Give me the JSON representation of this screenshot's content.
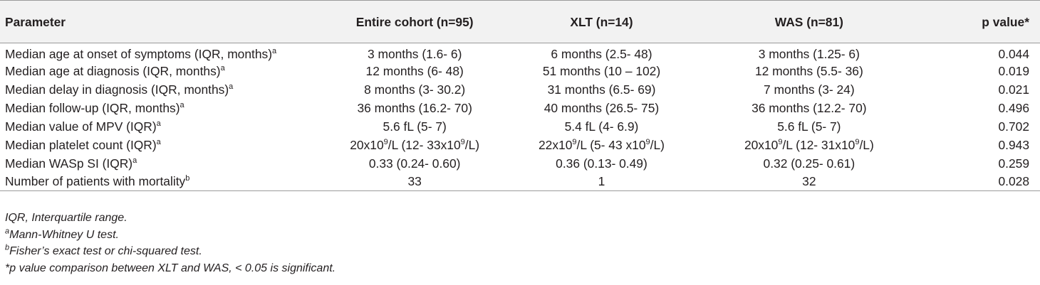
{
  "table": {
    "headers": [
      "Parameter",
      "Entire cohort (n=95)",
      "XLT (n=14)",
      "WAS (n=81)",
      "p value*"
    ],
    "rows": [
      {
        "parameter": "Median age at onset of symptoms (IQR, months)",
        "mark": "a",
        "cells": [
          {
            "pre": "3 months (1.6- 6)"
          },
          {
            "pre": "6 months (2.5- 48)"
          },
          {
            "pre": "3 months (1.25- 6)"
          }
        ],
        "p": "0.044"
      },
      {
        "parameter": "Median age at diagnosis (IQR, months)",
        "mark": "a",
        "cells": [
          {
            "pre": "12 months (6- 48)"
          },
          {
            "pre": "51 months (10 – 102)"
          },
          {
            "pre": "12 months (5.5- 36)"
          }
        ],
        "p": "0.019"
      },
      {
        "parameter": "Median delay in diagnosis (IQR, months)",
        "mark": "a",
        "cells": [
          {
            "pre": "8 months (3- 30.2)"
          },
          {
            "pre": "31 months (6.5- 69)"
          },
          {
            "pre": "7 months (3- 24)"
          }
        ],
        "p": "0.021"
      },
      {
        "parameter": "Median follow-up (IQR, months)",
        "mark": "a",
        "cells": [
          {
            "pre": "36 months (16.2- 70)"
          },
          {
            "pre": "40 months (26.5- 75)"
          },
          {
            "pre": "36 months (12.2- 70)"
          }
        ],
        "p": "0.496"
      },
      {
        "parameter": "Median value of MPV (IQR)",
        "mark": "a",
        "cells": [
          {
            "pre": "5.6 fL (5- 7)"
          },
          {
            "pre": "5.4 fL (4- 6.9)"
          },
          {
            "pre": "5.6 fL (5- 7)"
          }
        ],
        "p": "0.702"
      },
      {
        "parameter": "Median platelet count (IQR)",
        "mark": "a",
        "cells": [
          {
            "pre": "20x10",
            "sup1": "9",
            "mid": "/L (12- 33x10",
            "sup2": "9",
            "post": "/L)"
          },
          {
            "pre": "22x10",
            "sup1": "9",
            "mid": "/L (5- 43 x10",
            "sup2": "9",
            "post": "/L)"
          },
          {
            "pre": "20x10",
            "sup1": "9",
            "mid": "/L (12- 31x10",
            "sup2": "9",
            "post": "/L)"
          }
        ],
        "p": "0.943"
      },
      {
        "parameter": "Median WASp SI (IQR)",
        "mark": "a",
        "cells": [
          {
            "pre": "0.33 (0.24- 0.60)"
          },
          {
            "pre": "0.36 (0.13- 0.49)"
          },
          {
            "pre": "0.32 (0.25- 0.61)"
          }
        ],
        "p": "0.259"
      },
      {
        "parameter": "Number of patients with mortality",
        "mark": "b",
        "cells": [
          {
            "pre": "33"
          },
          {
            "pre": "1"
          },
          {
            "pre": "32"
          }
        ],
        "p": "0.028"
      }
    ]
  },
  "footnotes": [
    {
      "mark": "",
      "text": "IQR, Interquartile range."
    },
    {
      "mark": "a",
      "text": "Mann-Whitney U test."
    },
    {
      "mark": "b",
      "text": "Fisher’s exact test or chi-squared test."
    },
    {
      "mark": "",
      "text": "*p value comparison between XLT and WAS, < 0.05 is significant."
    }
  ]
}
